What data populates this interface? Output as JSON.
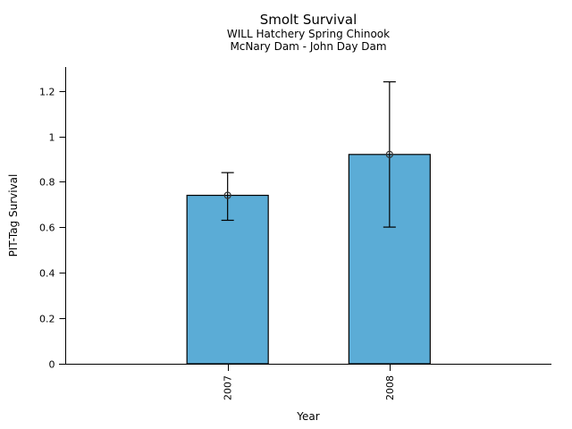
{
  "chart_data": {
    "type": "bar",
    "title": "Smolt Survival",
    "subtitle1": "WILL Hatchery Spring Chinook",
    "subtitle2": "McNary Dam - John Day Dam",
    "xlabel": "Year",
    "ylabel": "PIT-Tag Survival",
    "categories": [
      "2007",
      "2008"
    ],
    "values": [
      0.74,
      0.92
    ],
    "error_bars": [
      {
        "low": 0.63,
        "high": 0.84
      },
      {
        "low": 0.6,
        "high": 1.24
      }
    ],
    "yticks": [
      0,
      0.2,
      0.4,
      0.6,
      0.8,
      1,
      1.2
    ],
    "ytick_labels": [
      "0",
      "0.2",
      "0.4",
      "0.6",
      "0.8",
      "1",
      "1.2"
    ],
    "ylim": [
      0,
      1.3
    ],
    "grid": false,
    "legend": false,
    "marker": "open-circle",
    "colors": {
      "bar_fill": "#5BACD6",
      "bar_edge": "#000000",
      "error_bar": "#000000",
      "marker_stroke": "#333333",
      "axis": "#000000",
      "text": "#000000",
      "background": "#FFFFFF"
    }
  }
}
